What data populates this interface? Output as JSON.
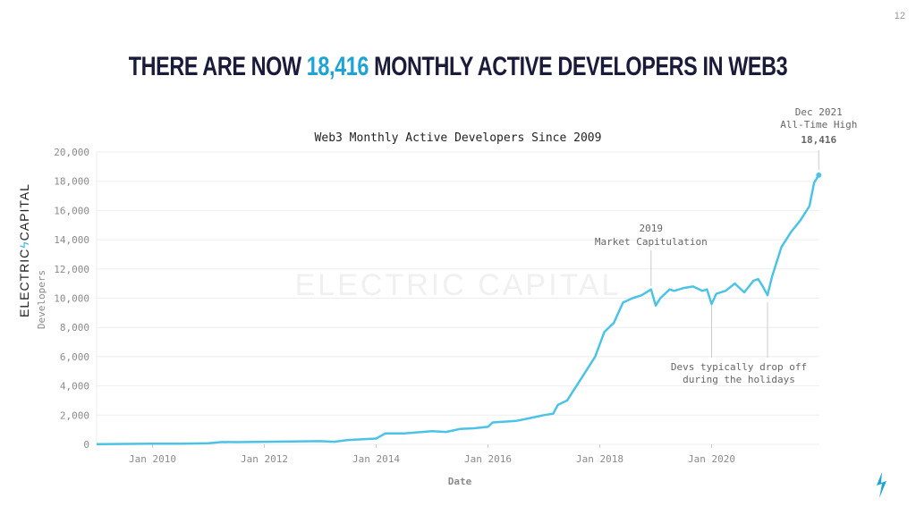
{
  "page_number": "12",
  "headline": {
    "before": "THERE ARE NOW ",
    "highlight": "18,416",
    "after": " MONTHLY ACTIVE DEVELOPERS IN WEB3"
  },
  "brand": {
    "left": "ELECTRIC",
    "right": "CAPITAL"
  },
  "watermark": "ELECTRIC CAPITAL",
  "colors": {
    "line": "#4cc3e6",
    "highlight": "#1ea3d6",
    "headline": "#1a1a3a"
  },
  "chart_data": {
    "type": "line",
    "title": "Web3 Monthly Active Developers Since 2009",
    "xlabel": "Date",
    "ylabel": "Developers",
    "ylim": [
      0,
      20000
    ],
    "xlim": [
      "2009-01",
      "2021-12"
    ],
    "grid": true,
    "yticks": [
      "0",
      "2,000",
      "4,000",
      "6,000",
      "8,000",
      "10,000",
      "12,000",
      "14,000",
      "16,000",
      "18,000",
      "20,000"
    ],
    "xticks": [
      "Jan 2010",
      "Jan 2012",
      "Jan 2014",
      "Jan 2016",
      "Jan 2018",
      "Jan 2020"
    ],
    "series": [
      {
        "points": [
          [
            "2009-01",
            20
          ],
          [
            "2009-07",
            30
          ],
          [
            "2010-01",
            40
          ],
          [
            "2010-07",
            50
          ],
          [
            "2011-01",
            80
          ],
          [
            "2011-04",
            160
          ],
          [
            "2011-07",
            150
          ],
          [
            "2012-01",
            180
          ],
          [
            "2012-07",
            200
          ],
          [
            "2013-01",
            220
          ],
          [
            "2013-04",
            180
          ],
          [
            "2013-07",
            300
          ],
          [
            "2014-01",
            400
          ],
          [
            "2014-03",
            750
          ],
          [
            "2014-07",
            750
          ],
          [
            "2015-01",
            900
          ],
          [
            "2015-04",
            850
          ],
          [
            "2015-07",
            1050
          ],
          [
            "2015-10",
            1100
          ],
          [
            "2016-01",
            1200
          ],
          [
            "2016-02",
            1500
          ],
          [
            "2016-07",
            1600
          ],
          [
            "2016-10",
            1800
          ],
          [
            "2017-01",
            2000
          ],
          [
            "2017-03",
            2100
          ],
          [
            "2017-04",
            2700
          ],
          [
            "2017-06",
            3000
          ],
          [
            "2017-08",
            4000
          ],
          [
            "2017-10",
            5000
          ],
          [
            "2017-12",
            6000
          ],
          [
            "2018-02",
            7700
          ],
          [
            "2018-04",
            8300
          ],
          [
            "2018-06",
            9700
          ],
          [
            "2018-08",
            10000
          ],
          [
            "2018-10",
            10200
          ],
          [
            "2018-12",
            10600
          ],
          [
            "2019-01",
            9500
          ],
          [
            "2019-02",
            10000
          ],
          [
            "2019-04",
            10600
          ],
          [
            "2019-05",
            10500
          ],
          [
            "2019-07",
            10700
          ],
          [
            "2019-09",
            10800
          ],
          [
            "2019-11",
            10500
          ],
          [
            "2019-12",
            10600
          ],
          [
            "2020-01",
            9600
          ],
          [
            "2020-02",
            10300
          ],
          [
            "2020-04",
            10500
          ],
          [
            "2020-06",
            11000
          ],
          [
            "2020-08",
            10400
          ],
          [
            "2020-10",
            11200
          ],
          [
            "2020-11",
            11300
          ],
          [
            "2020-12",
            10800
          ],
          [
            "2021-01",
            10200
          ],
          [
            "2021-02",
            11500
          ],
          [
            "2021-04",
            13500
          ],
          [
            "2021-06",
            14500
          ],
          [
            "2021-08",
            15300
          ],
          [
            "2021-10",
            16300
          ],
          [
            "2021-11",
            17900
          ],
          [
            "2021-12",
            18416
          ]
        ]
      }
    ],
    "annotations": [
      {
        "text": [
          "2019",
          "Market Capitulation"
        ],
        "date": "2018-12"
      },
      {
        "text": [
          "Devs typically drop off",
          "during the holidays"
        ],
        "dates": [
          "2020-01",
          "2021-01"
        ]
      },
      {
        "text": [
          "Dec 2021",
          "All-Time High",
          "18,416"
        ],
        "date": "2021-12"
      }
    ]
  }
}
